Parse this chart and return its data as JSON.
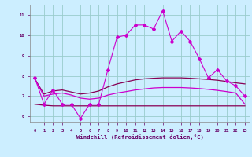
{
  "xlabel": "Windchill (Refroidissement éolien,°C)",
  "bg_color": "#cceeff",
  "grid_color": "#99cccc",
  "line_color_magenta": "#cc00cc",
  "line_color_purple": "#880055",
  "x_values": [
    0,
    1,
    2,
    3,
    4,
    5,
    6,
    7,
    8,
    9,
    10,
    11,
    12,
    13,
    14,
    15,
    16,
    17,
    18,
    19,
    20,
    21,
    22,
    23
  ],
  "ylim": [
    5.7,
    11.5
  ],
  "xlim": [
    -0.5,
    23.5
  ],
  "yticks": [
    6,
    7,
    8,
    9,
    10,
    11
  ],
  "xticks": [
    0,
    1,
    2,
    3,
    4,
    5,
    6,
    7,
    8,
    9,
    10,
    11,
    12,
    13,
    14,
    15,
    16,
    17,
    18,
    19,
    20,
    21,
    22,
    23
  ],
  "series_spiky": [
    7.9,
    6.6,
    7.3,
    6.6,
    6.6,
    5.9,
    6.6,
    6.6,
    8.3,
    9.9,
    10.0,
    10.5,
    10.5,
    10.3,
    11.2,
    9.7,
    10.2,
    9.7,
    8.85,
    7.9,
    8.3,
    7.75,
    7.5,
    7.0
  ],
  "series_smooth1": [
    7.85,
    7.1,
    7.25,
    7.3,
    7.2,
    7.1,
    7.15,
    7.25,
    7.45,
    7.6,
    7.7,
    7.8,
    7.85,
    7.88,
    7.9,
    7.9,
    7.9,
    7.88,
    7.85,
    7.82,
    7.78,
    7.72,
    7.65,
    7.6
  ],
  "series_smooth2": [
    7.85,
    7.0,
    7.1,
    7.15,
    7.05,
    6.9,
    6.85,
    6.9,
    7.05,
    7.15,
    7.22,
    7.3,
    7.35,
    7.4,
    7.42,
    7.42,
    7.42,
    7.4,
    7.37,
    7.33,
    7.28,
    7.22,
    7.15,
    6.6
  ],
  "series_flat_lower": [
    6.6,
    6.55,
    6.52,
    6.52,
    6.52,
    6.52,
    6.52,
    6.52,
    6.52,
    6.52,
    6.52,
    6.52,
    6.52,
    6.52,
    6.52,
    6.52,
    6.52,
    6.52,
    6.52,
    6.52,
    6.52,
    6.52,
    6.52,
    6.52
  ]
}
